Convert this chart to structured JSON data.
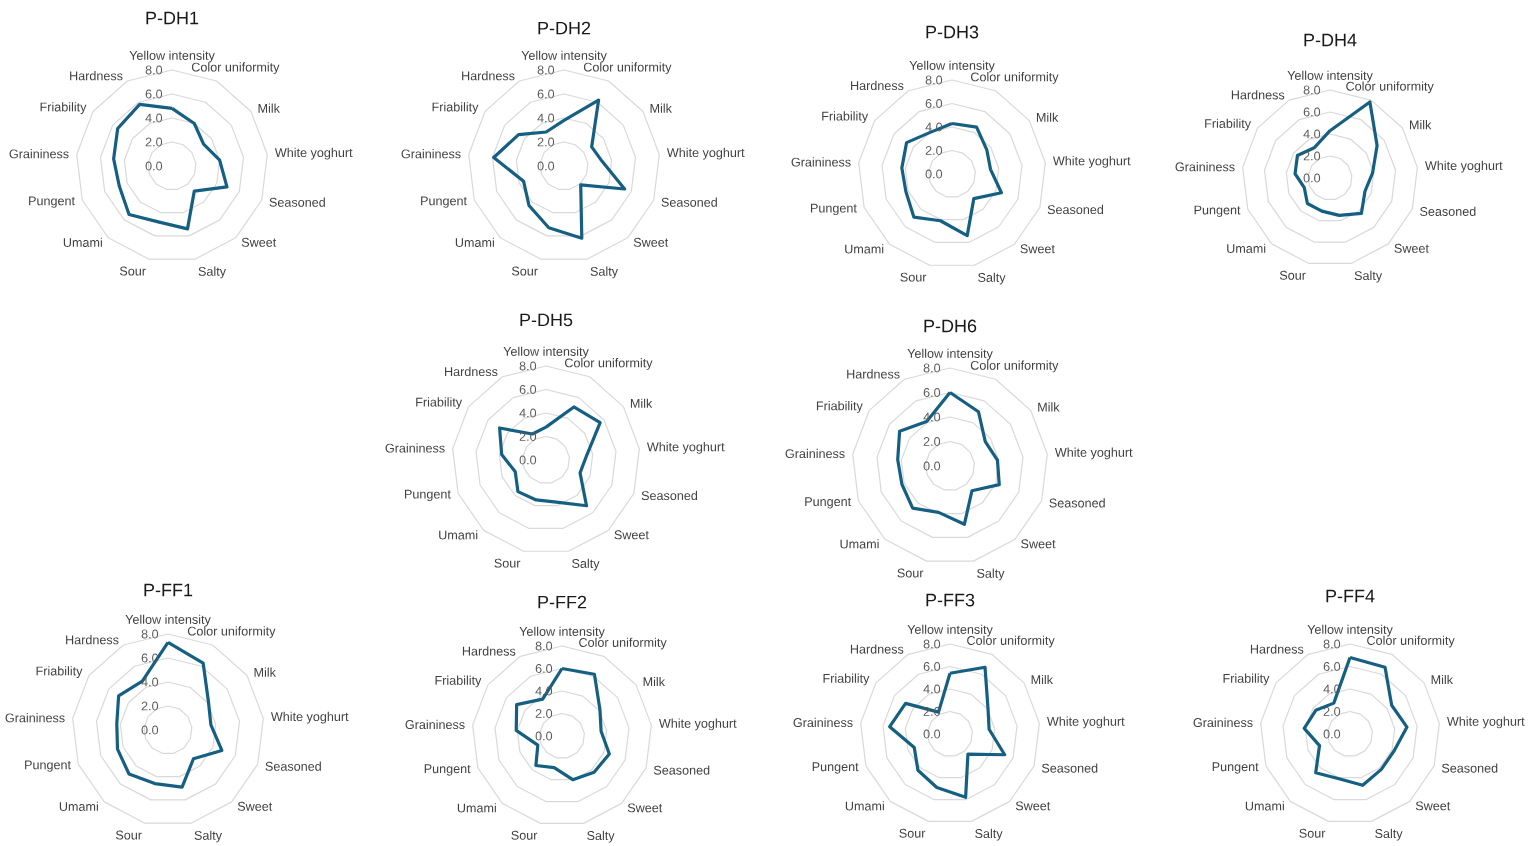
{
  "chart_data": [
    {
      "type": "radar",
      "title": "P-DH1",
      "categories": [
        "Yellow intensity",
        "Color uniformity",
        "Milk",
        "White yoghurt",
        "Seasoned",
        "Sweet",
        "Salty",
        "Sour",
        "Umami",
        "Pungent",
        "Graininess",
        "Friability",
        "Hardness"
      ],
      "series": [
        {
          "color": "#156082",
          "values": [
            4.8,
            4.0,
            3.2,
            4.0,
            4.9,
            2.8,
            5.4,
            4.8,
            5.4,
            4.7,
            4.9,
            5.5,
            5.8
          ]
        }
      ],
      "ylim": [
        0,
        8
      ],
      "yticks": [
        {
          "value": 0,
          "label": "0.0"
        },
        {
          "value": 2,
          "label": "2.0"
        },
        {
          "value": 4,
          "label": "4.0"
        },
        {
          "value": 6,
          "label": "6.0"
        },
        {
          "value": 8,
          "label": "8.0"
        }
      ],
      "grid": true
    },
    {
      "type": "radar",
      "title": "P-DH2",
      "categories": [
        "Yellow intensity",
        "Color uniformity",
        "Milk",
        "White yoghurt",
        "Seasoned",
        "Sweet",
        "Salty",
        "Sour",
        "Umami",
        "Pungent",
        "Graininess",
        "Friability",
        "Hardness"
      ],
      "series": [
        {
          "color": "#156082",
          "values": [
            3.8,
            6.2,
            2.8,
            3.2,
            5.4,
            2.1,
            6.2,
            5.3,
            4.4,
            3.6,
            5.9,
            4.6,
            3.2
          ]
        }
      ],
      "ylim": [
        0,
        8
      ],
      "yticks": [
        {
          "value": 0,
          "label": "0.0"
        },
        {
          "value": 2,
          "label": "2.0"
        },
        {
          "value": 4,
          "label": "4.0"
        },
        {
          "value": 6,
          "label": "6.0"
        },
        {
          "value": 8,
          "label": "8.0"
        }
      ],
      "grid": true
    },
    {
      "type": "radar",
      "title": "P-DH3",
      "categories": [
        "Yellow intensity",
        "Color uniformity",
        "Milk",
        "White yoghurt",
        "Seasoned",
        "Sweet",
        "Salty",
        "Sour",
        "Umami",
        "Pungent",
        "Graininess",
        "Friability",
        "Hardness"
      ],
      "series": [
        {
          "color": "#156082",
          "values": [
            4.3,
            4.5,
            3.6,
            3.3,
            4.5,
            2.8,
            5.4,
            4.1,
            4.9,
            4.2,
            4.3,
            4.7,
            4.0
          ]
        }
      ],
      "ylim": [
        0,
        8
      ],
      "yticks": [
        {
          "value": 0,
          "label": "0.0"
        },
        {
          "value": 2,
          "label": "2.0"
        },
        {
          "value": 4,
          "label": "4.0"
        },
        {
          "value": 6,
          "label": "6.0"
        },
        {
          "value": 8,
          "label": "8.0"
        }
      ],
      "grid": true
    },
    {
      "type": "radar",
      "title": "P-DH4",
      "categories": [
        "Yellow intensity",
        "Color uniformity",
        "Milk",
        "White yoghurt",
        "Seasoned",
        "Sweet",
        "Salty",
        "Sour",
        "Umami",
        "Pungent",
        "Graininess",
        "Friability",
        "Hardness"
      ],
      "series": [
        {
          "color": "#156082",
          "values": [
            4.3,
            7.8,
            5.2,
            3.9,
            3.4,
            4.3,
            3.5,
            3.1,
            3.1,
            2.5,
            3.2,
            3.6,
            3.1
          ]
        }
      ],
      "ylim": [
        0,
        8
      ],
      "yticks": [
        {
          "value": 0,
          "label": "0.0"
        },
        {
          "value": 2,
          "label": "2.0"
        },
        {
          "value": 4,
          "label": "4.0"
        },
        {
          "value": 6,
          "label": "6.0"
        },
        {
          "value": 8,
          "label": "8.0"
        }
      ],
      "grid": true
    },
    {
      "type": "radar",
      "title": "P-DH5",
      "categories": [
        "Yellow intensity",
        "Color uniformity",
        "Milk",
        "White yoghurt",
        "Seasoned",
        "Sweet",
        "Salty",
        "Sour",
        "Umami",
        "Pungent",
        "Graininess",
        "Friability",
        "Hardness"
      ],
      "series": [
        {
          "color": "#156082",
          "values": [
            2.8,
            5.1,
            5.6,
            3.5,
            3.1,
            5.2,
            3.7,
            3.5,
            3.6,
            2.8,
            3.8,
            4.8,
            2.5
          ]
        }
      ],
      "ylim": [
        0,
        8
      ],
      "yticks": [
        {
          "value": 0,
          "label": "0.0"
        },
        {
          "value": 2,
          "label": "2.0"
        },
        {
          "value": 4,
          "label": "4.0"
        },
        {
          "value": 6,
          "label": "6.0"
        },
        {
          "value": 8,
          "label": "8.0"
        }
      ],
      "grid": true
    },
    {
      "type": "radar",
      "title": "P-DH6",
      "categories": [
        "Yellow intensity",
        "Color uniformity",
        "Milk",
        "White yoghurt",
        "Seasoned",
        "Sweet",
        "Salty",
        "Sour",
        "Umami",
        "Pungent",
        "Graininess",
        "Friability",
        "Hardness"
      ],
      "series": [
        {
          "color": "#156082",
          "values": [
            6.0,
            5.0,
            3.5,
            3.9,
            4.3,
            2.7,
            4.9,
            3.9,
            4.6,
            4.2,
            4.3,
            5.0,
            4.1
          ]
        }
      ],
      "ylim": [
        0,
        8
      ],
      "yticks": [
        {
          "value": 0,
          "label": "0.0"
        },
        {
          "value": 2,
          "label": "2.0"
        },
        {
          "value": 4,
          "label": "4.0"
        },
        {
          "value": 6,
          "label": "6.0"
        },
        {
          "value": 8,
          "label": "8.0"
        }
      ],
      "grid": true
    },
    {
      "type": "radar",
      "title": "P-FF1",
      "categories": [
        "Yellow intensity",
        "Color uniformity",
        "Milk",
        "White yoghurt",
        "Seasoned",
        "Sweet",
        "Salty",
        "Sour",
        "Umami",
        "Pungent",
        "Graininess",
        "Friability",
        "Hardness"
      ],
      "series": [
        {
          "color": "#156082",
          "values": [
            7.3,
            6.3,
            4.1,
            3.6,
            4.8,
            3.2,
            4.9,
            4.6,
            4.9,
            4.5,
            4.3,
            5.0,
            4.6
          ]
        }
      ],
      "ylim": [
        0,
        8
      ],
      "yticks": [
        {
          "value": 0,
          "label": "0.0"
        },
        {
          "value": 2,
          "label": "2.0"
        },
        {
          "value": 4,
          "label": "4.0"
        },
        {
          "value": 6,
          "label": "6.0"
        },
        {
          "value": 8,
          "label": "8.0"
        }
      ],
      "grid": true
    },
    {
      "type": "radar",
      "title": "P-FF2",
      "categories": [
        "Yellow intensity",
        "Color uniformity",
        "Milk",
        "White yoghurt",
        "Seasoned",
        "Sweet",
        "Salty",
        "Sour",
        "Umami",
        "Pungent",
        "Graininess",
        "Friability",
        "Hardness"
      ],
      "series": [
        {
          "color": "#156082",
          "values": [
            6.0,
            6.2,
            4.1,
            3.5,
            4.5,
            4.3,
            4.0,
            2.9,
            3.5,
            2.3,
            4.1,
            4.9,
            3.7
          ]
        }
      ],
      "ylim": [
        0,
        8
      ],
      "yticks": [
        {
          "value": 0,
          "label": "0.0"
        },
        {
          "value": 2,
          "label": "2.0"
        },
        {
          "value": 4,
          "label": "4.0"
        },
        {
          "value": 6,
          "label": "6.0"
        },
        {
          "value": 8,
          "label": "8.0"
        }
      ],
      "grid": true
    },
    {
      "type": "radar",
      "title": "P-FF3",
      "categories": [
        "Yellow intensity",
        "Color uniformity",
        "Milk",
        "White yoghurt",
        "Seasoned",
        "Sweet",
        "Salty",
        "Sour",
        "Umami",
        "Pungent",
        "Graininess",
        "Friability",
        "Hardness"
      ],
      "series": [
        {
          "color": "#156082",
          "values": [
            5.4,
            6.7,
            4.1,
            3.5,
            5.2,
            2.4,
            5.8,
            4.9,
            4.3,
            3.4,
            5.4,
            4.8,
            2.2
          ]
        }
      ],
      "ylim": [
        0,
        8
      ],
      "yticks": [
        {
          "value": 0,
          "label": "0.0"
        },
        {
          "value": 2,
          "label": "2.0"
        },
        {
          "value": 4,
          "label": "4.0"
        },
        {
          "value": 6,
          "label": "6.0"
        },
        {
          "value": 8,
          "label": "8.0"
        }
      ],
      "grid": true
    },
    {
      "type": "radar",
      "title": "P-FF4",
      "categories": [
        "Yellow intensity",
        "Color uniformity",
        "Milk",
        "White yoghurt",
        "Seasoned",
        "Sweet",
        "Salty",
        "Sour",
        "Umami",
        "Pungent",
        "Graininess",
        "Friability",
        "Hardness"
      ],
      "series": [
        {
          "color": "#156082",
          "values": [
            6.8,
            6.7,
            4.5,
            5.1,
            4.2,
            4.2,
            4.7,
            4.1,
            4.6,
            2.9,
            4.1,
            3.7,
            3.1
          ]
        }
      ],
      "ylim": [
        0,
        8
      ],
      "yticks": [
        {
          "value": 0,
          "label": "0.0"
        },
        {
          "value": 2,
          "label": "2.0"
        },
        {
          "value": 4,
          "label": "4.0"
        },
        {
          "value": 6,
          "label": "6.0"
        },
        {
          "value": 8,
          "label": "8.0"
        }
      ],
      "grid": true
    }
  ]
}
